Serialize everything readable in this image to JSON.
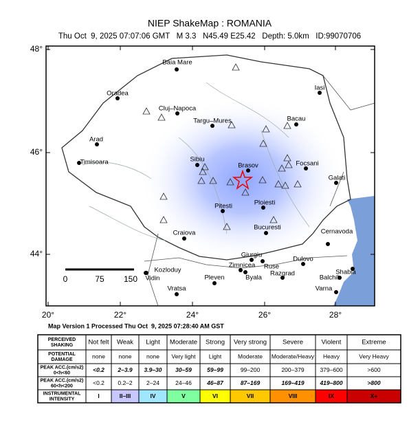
{
  "header": {
    "title": "NIEP ShakeMap : ROMANIA",
    "subtitle": "Thu Oct  9, 2025 07:07:06 GMT   M 3.3   N45.49 E25.42   Depth: 5.0km   ID:99070706"
  },
  "map": {
    "lat_labels": [
      "48°",
      "46°",
      "44°"
    ],
    "lon_labels": [
      "20°",
      "22°",
      "24°",
      "26°",
      "28°"
    ],
    "scale_labels": [
      "0",
      "75",
      "150"
    ],
    "cities": [
      "Baia Mare",
      "Oradea",
      "Cluj–Napoca",
      "Targu–Mures",
      "Iasi",
      "Bacau",
      "Arad",
      "Timisoara",
      "Sibiu",
      "Brasov",
      "Focsani",
      "Galati",
      "Pitesti",
      "Ploiesti",
      "Craiova",
      "Bucuresti",
      "Cernavoda",
      "Giurgiu",
      "Kozloduy",
      "Vidin",
      "Zimnicea",
      "Ruse",
      "Dulovo",
      "Pleven",
      "Byala",
      "Razgrad",
      "Shabla",
      "Balchik",
      "Varna",
      "Vratsa"
    ]
  },
  "footer": "Map Version 1 Processed Thu Oct  9, 2025 07:28:40 AM GST",
  "legend": {
    "rows": [
      {
        "label": [
          "PERCEIVED",
          "SHAKING"
        ],
        "cells": [
          "Not felt",
          "Weak",
          "Light",
          "Moderate",
          "Strong",
          "Very strong",
          "Severe",
          "Violent",
          "Extreme"
        ]
      },
      {
        "label": [
          "POTENTIAL",
          "DAMAGE"
        ],
        "cells": [
          "none",
          "none",
          "none",
          "Very light",
          "Light",
          "Moderate",
          "Moderate/Heavy",
          "Heavy",
          "Very Heavy"
        ]
      },
      {
        "label": [
          "PEAK ACC.(cm/s2)",
          "0<h<60"
        ],
        "cells": [
          "<0.2",
          "2–3.9",
          "3.9–30",
          "30–59",
          "59–99",
          "99–200",
          "200–379",
          "379–600",
          ">600"
        ]
      },
      {
        "label": [
          "PEAK ACC.(cm/s2)",
          "60<h<200"
        ],
        "cells": [
          "<0.2",
          "0.2–2",
          "2–24",
          "24–46",
          "46–87",
          "87–169",
          "169–419",
          "419–800",
          ">800"
        ]
      },
      {
        "label": [
          "INSTRUMENTAL",
          "INTENSITY"
        ],
        "cells": [
          "I",
          "II–III",
          "IV",
          "V",
          "VI",
          "VII",
          "VIII",
          "IX",
          "X+"
        ]
      }
    ]
  }
}
